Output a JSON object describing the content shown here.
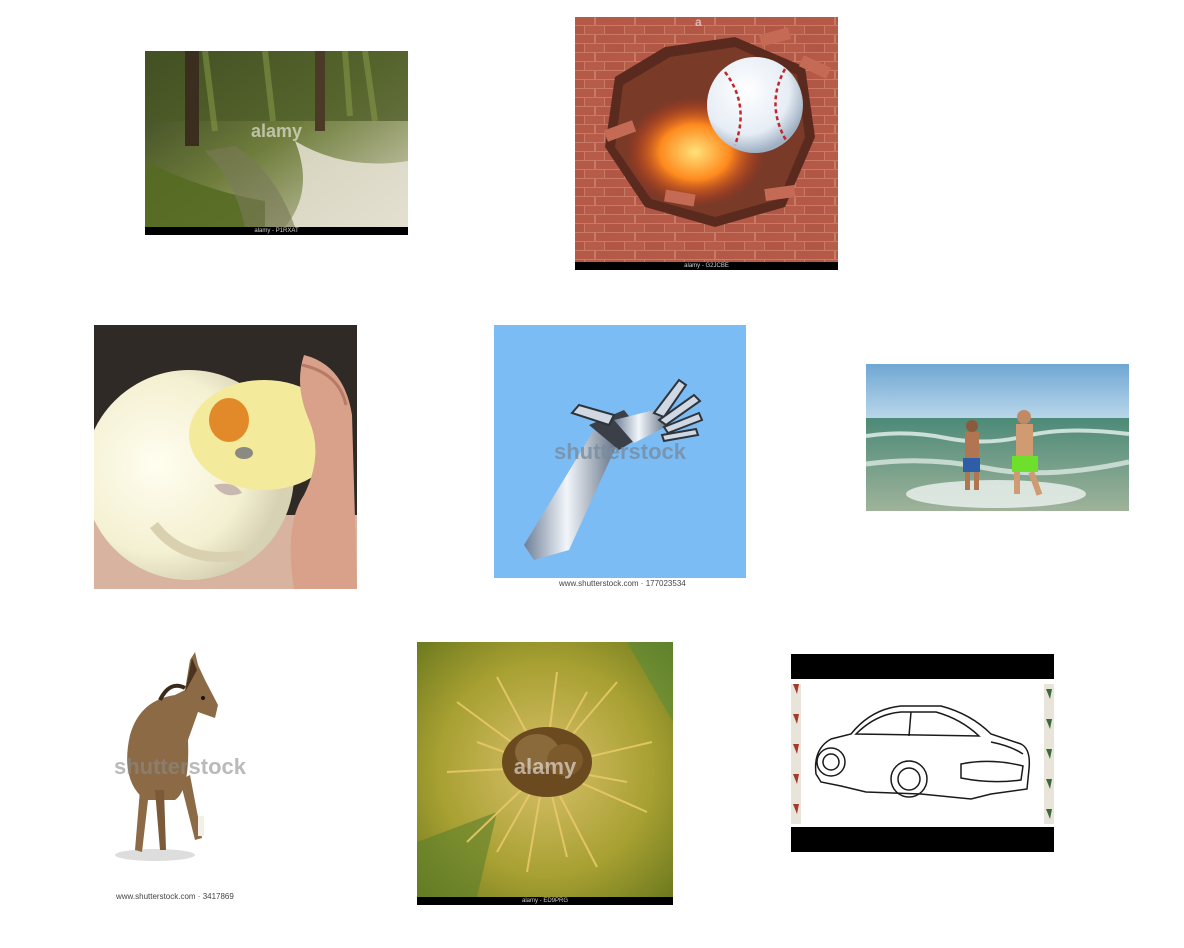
{
  "tiles": [
    {
      "subject": "forest stream",
      "watermark": "alamy",
      "caption": "alamy - P1RXAT"
    },
    {
      "subject": "baseball breaking brick wall",
      "watermark": "a",
      "caption": "alamy - G2JCBE"
    },
    {
      "subject": "cockatiel being scratched",
      "watermark": "",
      "caption": ""
    },
    {
      "subject": "robotic arm",
      "watermark": "shutterstock",
      "caption": "www.shutterstock.com · 177023534"
    },
    {
      "subject": "boys running in surf",
      "watermark": "",
      "caption": ""
    },
    {
      "subject": "foal",
      "watermark": "shutterstock",
      "caption": "www.shutterstock.com · 3417869"
    },
    {
      "subject": "chestnut burr",
      "watermark": "alamy",
      "caption": "alamy - ED9PRG"
    },
    {
      "subject": "car line drawing",
      "watermark": "",
      "caption": ""
    }
  ]
}
